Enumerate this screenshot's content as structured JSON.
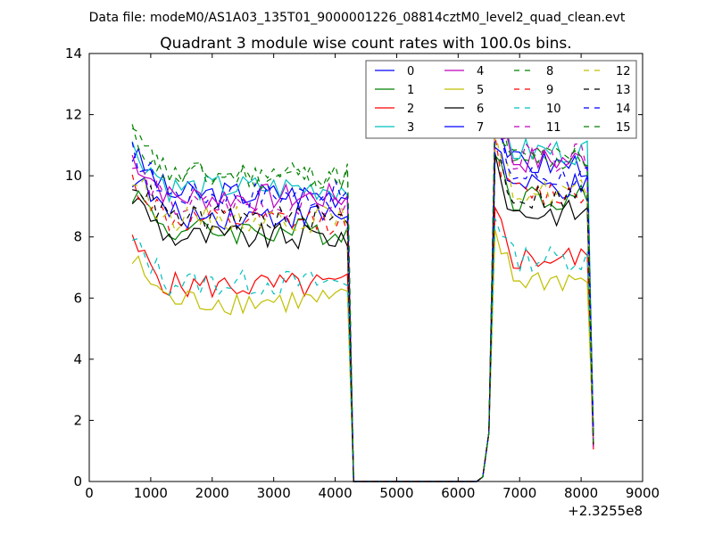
{
  "suptitle": "Data file: modeM0/AS1A03_135T01_9000001226_08814cztM0_level2_quad_clean.evt",
  "chart_data": {
    "type": "line",
    "title": "Quadrant 3 module wise count rates with 100.0s bins.",
    "xlabel": "",
    "ylabel": "",
    "x_offset_label": "+2.3255e8",
    "xlim": [
      0,
      9000
    ],
    "ylim": [
      0,
      14
    ],
    "x_ticks": [
      0,
      1000,
      2000,
      3000,
      4000,
      5000,
      6000,
      7000,
      8000,
      9000
    ],
    "y_ticks": [
      0,
      2,
      4,
      6,
      8,
      10,
      12,
      14
    ],
    "grid": false,
    "legend_position": "top-right",
    "legend_columns": 4,
    "x": [
      4300,
      4400,
      4500,
      4600,
      4700,
      4800,
      4900,
      5000,
      5100,
      5200,
      5300,
      5400,
      5500,
      5600,
      5700,
      5800,
      5900,
      6000,
      6100,
      6200,
      6300
    ],
    "series": [
      {
        "name": "0",
        "color": "#0000ff",
        "dash": "solid",
        "level_segment_1": 9.4,
        "level_segment_2": 10.4
      },
      {
        "name": "1",
        "color": "#008000",
        "dash": "solid",
        "level_segment_1": 8.2,
        "level_segment_2": 9.3
      },
      {
        "name": "2",
        "color": "#ff0000",
        "dash": "solid",
        "level_segment_1": 6.4,
        "level_segment_2": 7.3
      },
      {
        "name": "3",
        "color": "#00bfbf",
        "dash": "solid",
        "level_segment_1": 9.6,
        "level_segment_2": 10.8
      },
      {
        "name": "4",
        "color": "#bf00bf",
        "dash": "solid",
        "level_segment_1": 9.3,
        "level_segment_2": 10.5
      },
      {
        "name": "5",
        "color": "#bfbf00",
        "dash": "solid",
        "level_segment_1": 5.9,
        "level_segment_2": 6.6
      },
      {
        "name": "6",
        "color": "#000000",
        "dash": "solid",
        "level_segment_1": 8.0,
        "level_segment_2": 8.8
      },
      {
        "name": "7",
        "color": "#0000ff",
        "dash": "solid",
        "level_segment_1": 8.7,
        "level_segment_2": 9.6
      },
      {
        "name": "8",
        "color": "#008000",
        "dash": "dashed",
        "level_segment_1": 10.0,
        "level_segment_2": 10.6
      },
      {
        "name": "9",
        "color": "#ff0000",
        "dash": "dashed",
        "level_segment_1": 8.5,
        "level_segment_2": 9.4
      },
      {
        "name": "10",
        "color": "#00bfbf",
        "dash": "dashed",
        "level_segment_1": 6.5,
        "level_segment_2": 7.3
      },
      {
        "name": "11",
        "color": "#bf00bf",
        "dash": "dashed",
        "level_segment_1": 9.0,
        "level_segment_2": 10.6
      },
      {
        "name": "12",
        "color": "#bfbf00",
        "dash": "dashed",
        "level_segment_1": 8.6,
        "level_segment_2": 9.5
      },
      {
        "name": "13",
        "color": "#000000",
        "dash": "dashed",
        "level_segment_1": 8.6,
        "level_segment_2": 9.3
      },
      {
        "name": "14",
        "color": "#0000ff",
        "dash": "dashed",
        "level_segment_1": 9.4,
        "level_segment_2": 10.0
      },
      {
        "name": "15",
        "color": "#008000",
        "dash": "dashed",
        "level_segment_1": 10.0,
        "level_segment_2": 10.5
      }
    ]
  }
}
